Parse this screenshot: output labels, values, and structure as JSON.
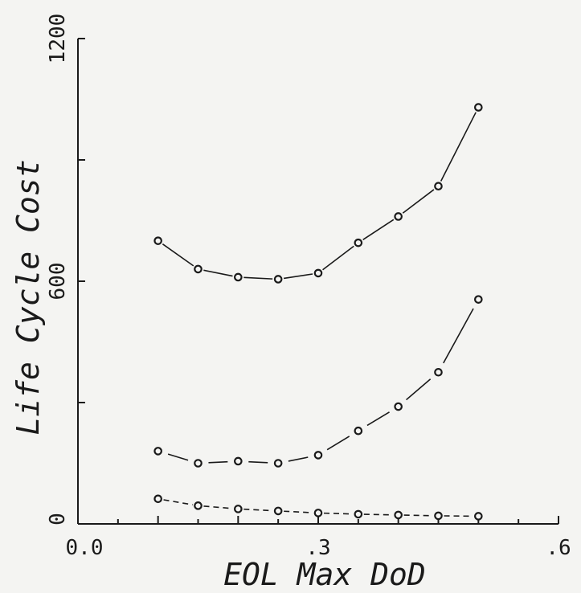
{
  "chart_data": {
    "type": "line",
    "title": "",
    "xlabel": "EOL Max DoD",
    "ylabel": "Life Cycle Cost",
    "xlim": [
      0.0,
      0.6
    ],
    "ylim": [
      0,
      1200
    ],
    "x_ticks": [
      {
        "value": 0.0,
        "label": "0.0"
      },
      {
        "value": 0.3,
        "label": ".3"
      },
      {
        "value": 0.6,
        "label": ".6"
      }
    ],
    "y_ticks": [
      {
        "value": 0,
        "label": "0"
      },
      {
        "value": 600,
        "label": "600"
      },
      {
        "value": 1200,
        "label": "1200"
      }
    ],
    "grid": false,
    "series": [
      {
        "line_style": "solid",
        "x": [
          0.1,
          0.15,
          0.2,
          0.25,
          0.3,
          0.35,
          0.4,
          0.45,
          0.5
        ],
        "y": [
          700,
          630,
          610,
          605,
          620,
          695,
          760,
          835,
          1030
        ]
      },
      {
        "line_style": "solid-broken",
        "x": [
          0.1,
          0.15,
          0.2,
          0.25,
          0.3,
          0.35,
          0.4,
          0.45,
          0.5
        ],
        "y": [
          180,
          150,
          155,
          150,
          170,
          230,
          290,
          375,
          555
        ]
      },
      {
        "line_style": "dashed",
        "x": [
          0.1,
          0.15,
          0.2,
          0.25,
          0.3,
          0.35,
          0.4,
          0.45,
          0.5
        ],
        "y": [
          62,
          45,
          37,
          32,
          27,
          24,
          22,
          20,
          19
        ]
      }
    ]
  }
}
